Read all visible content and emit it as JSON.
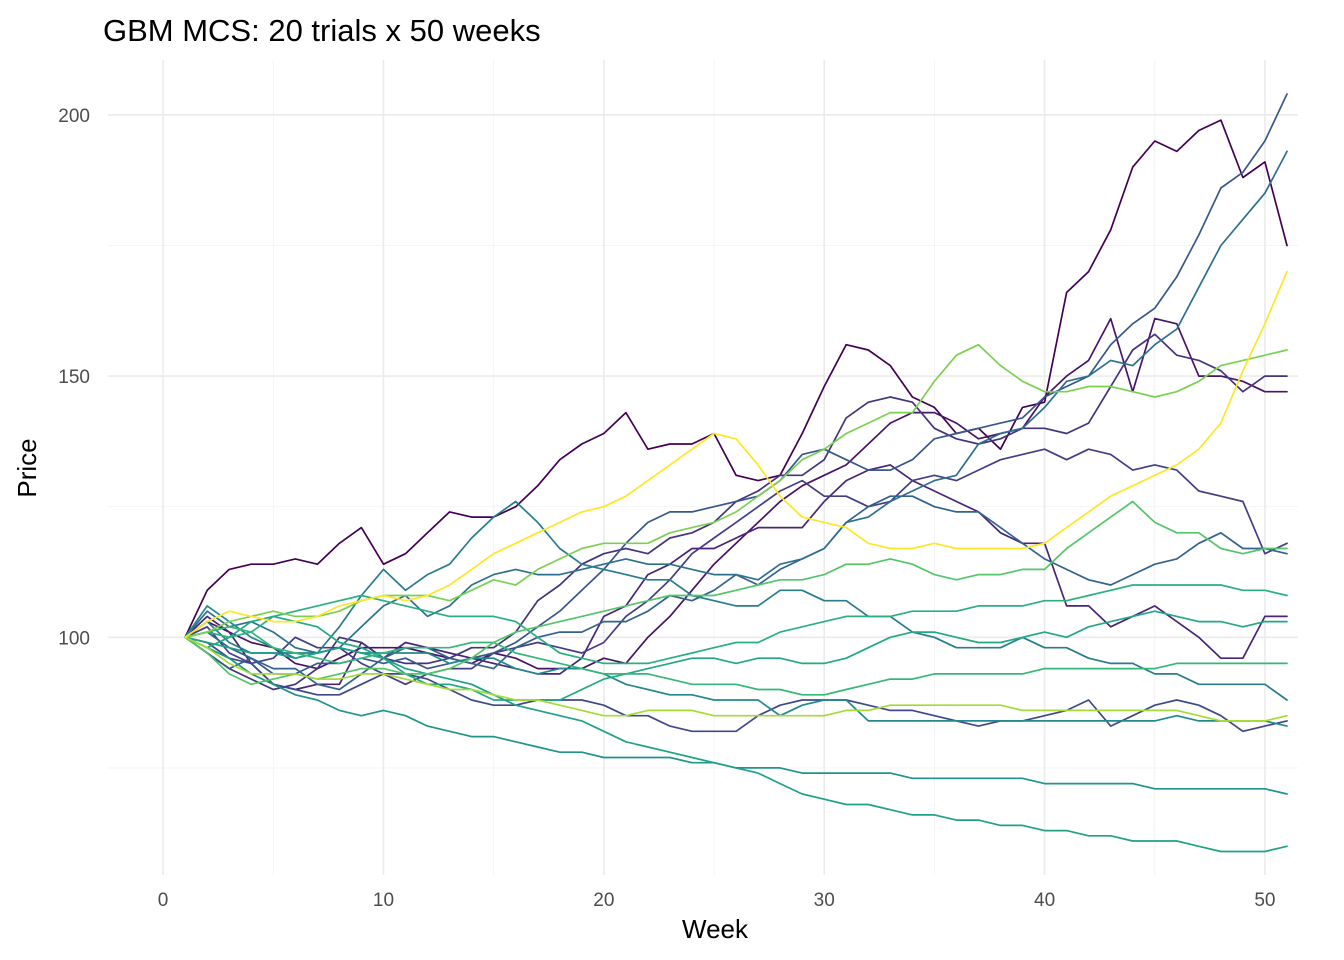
{
  "chart_data": {
    "type": "line",
    "title": "GBM MCS: 20 trials x 50 weeks",
    "xlabel": "Week",
    "ylabel": "Price",
    "xlim": [
      -2.5,
      51.5
    ],
    "ylim": [
      54.5,
      210.5
    ],
    "x_major_ticks": [
      0,
      10,
      20,
      30,
      40,
      50
    ],
    "x_minor_ticks": [
      5,
      15,
      25,
      35,
      45
    ],
    "y_major_ticks": [
      100,
      150,
      200
    ],
    "y_minor_ticks": [
      75,
      125,
      175
    ],
    "grid": true,
    "legend": "none",
    "series": [
      {
        "color": "#440154",
        "values": [
          100,
          109,
          113,
          114,
          114,
          115,
          114,
          118,
          121,
          114,
          116,
          120,
          124,
          123,
          123,
          125,
          129,
          134,
          137,
          139,
          143,
          136,
          137,
          137,
          139,
          131,
          130,
          131,
          139,
          148,
          156,
          155,
          152,
          146,
          144,
          139,
          140,
          136,
          144,
          145,
          166,
          170,
          178,
          190,
          195,
          193,
          197,
          199,
          188,
          191,
          175
        ]
      },
      {
        "color": "#481467",
        "values": [
          100,
          103,
          101,
          99,
          98,
          95,
          94,
          96,
          98,
          98,
          98,
          97,
          96,
          95,
          97,
          96,
          94,
          94,
          94,
          96,
          95,
          100,
          104,
          109,
          114,
          118,
          122,
          126,
          129,
          131,
          133,
          137,
          141,
          143,
          143,
          141,
          138,
          139,
          140,
          146,
          150,
          153,
          161,
          147,
          161,
          160,
          150,
          150,
          149,
          147,
          147
        ]
      },
      {
        "color": "#482576",
        "values": [
          100,
          104,
          101,
          95,
          91,
          90,
          91,
          91,
          99,
          96,
          99,
          98,
          97,
          96,
          95,
          94,
          93,
          93,
          96,
          104,
          106,
          112,
          114,
          117,
          117,
          119,
          121,
          121,
          121,
          126,
          130,
          132,
          133,
          130,
          128,
          126,
          124,
          120,
          118,
          118,
          106,
          106,
          102,
          104,
          106,
          103,
          100,
          96,
          96,
          104,
          104
        ]
      },
      {
        "color": "#46337E",
        "values": [
          100,
          97,
          94,
          92,
          90,
          91,
          94,
          100,
          99,
          96,
          95,
          95,
          96,
          98,
          98,
          101,
          107,
          110,
          114,
          116,
          117,
          116,
          119,
          120,
          122,
          126,
          128,
          131,
          131,
          134,
          142,
          145,
          146,
          145,
          140,
          138,
          137,
          138,
          140,
          140,
          139,
          141,
          148,
          155,
          158,
          154,
          153,
          151,
          147,
          150,
          150
        ]
      },
      {
        "color": "#433E85",
        "values": [
          100,
          102,
          97,
          95,
          96,
          100,
          98,
          98,
          95,
          93,
          91,
          93,
          94,
          94,
          97,
          98,
          99,
          98,
          97,
          99,
          104,
          107,
          111,
          116,
          119,
          122,
          125,
          128,
          130,
          127,
          127,
          125,
          126,
          130,
          131,
          130,
          132,
          134,
          135,
          136,
          134,
          136,
          135,
          132,
          133,
          132,
          128,
          127,
          126,
          116,
          118
        ]
      },
      {
        "color": "#3E4989",
        "values": [
          100,
          99,
          96,
          95,
          91,
          90,
          89,
          89,
          91,
          93,
          93,
          92,
          90,
          88,
          87,
          87,
          88,
          88,
          88,
          87,
          85,
          85,
          83,
          82,
          82,
          82,
          85,
          87,
          88,
          88,
          88,
          87,
          86,
          86,
          85,
          84,
          83,
          84,
          84,
          85,
          86,
          88,
          83,
          85,
          87,
          88,
          87,
          85,
          82,
          83,
          84
        ]
      },
      {
        "color": "#38588C",
        "values": [
          100,
          97,
          94,
          96,
          93,
          93,
          95,
          95,
          96,
          95,
          96,
          94,
          95,
          96,
          97,
          99,
          102,
          105,
          109,
          113,
          118,
          122,
          124,
          124,
          125,
          126,
          127,
          130,
          135,
          136,
          134,
          132,
          132,
          134,
          138,
          139,
          140,
          141,
          142,
          146,
          148,
          150,
          156,
          160,
          163,
          169,
          177,
          186,
          189,
          195,
          204
        ]
      },
      {
        "color": "#33638D",
        "values": [
          100,
          101,
          98,
          96,
          94,
          94,
          91,
          90,
          93,
          96,
          98,
          98,
          96,
          95,
          94,
          98,
          100,
          101,
          101,
          103,
          103,
          105,
          108,
          107,
          109,
          112,
          110,
          113,
          115,
          117,
          122,
          125,
          127,
          127,
          125,
          124,
          124,
          121,
          118,
          115,
          113,
          111,
          110,
          112,
          114,
          115,
          118,
          120,
          117,
          117,
          116
        ]
      },
      {
        "color": "#2D708E",
        "values": [
          100,
          105,
          102,
          103,
          101,
          98,
          97,
          98,
          102,
          106,
          108,
          104,
          106,
          110,
          112,
          113,
          112,
          112,
          113,
          114,
          115,
          114,
          114,
          113,
          112,
          112,
          111,
          114,
          115,
          117,
          122,
          123,
          126,
          128,
          130,
          131,
          137,
          139,
          140,
          144,
          149,
          150,
          153,
          152,
          156,
          159,
          167,
          175,
          180,
          185,
          193
        ]
      },
      {
        "color": "#287C8E",
        "values": [
          100,
          103,
          99,
          97,
          97,
          97,
          97,
          102,
          108,
          113,
          109,
          112,
          114,
          119,
          123,
          126,
          122,
          117,
          114,
          113,
          112,
          111,
          111,
          108,
          107,
          106,
          106,
          109,
          109,
          107,
          107,
          104,
          104,
          101,
          100,
          98,
          98,
          98,
          100,
          98,
          98,
          96,
          95,
          95,
          93,
          93,
          91,
          91,
          91,
          91,
          88
        ]
      },
      {
        "color": "#23898E",
        "values": [
          100,
          106,
          103,
          100,
          98,
          96,
          97,
          98,
          97,
          97,
          97,
          97,
          95,
          96,
          96,
          94,
          93,
          94,
          94,
          93,
          91,
          90,
          89,
          89,
          88,
          88,
          88,
          85,
          87,
          88,
          88,
          84,
          84,
          84,
          84,
          84,
          84,
          84,
          84,
          84,
          84,
          84,
          84,
          84,
          84,
          85,
          84,
          84,
          84,
          84,
          83
        ]
      },
      {
        "color": "#1F948C",
        "values": [
          100,
          98,
          96,
          93,
          91,
          89,
          88,
          86,
          85,
          86,
          85,
          83,
          82,
          81,
          81,
          80,
          79,
          78,
          78,
          77,
          77,
          77,
          77,
          76,
          76,
          75,
          75,
          75,
          74,
          74,
          74,
          74,
          74,
          73,
          73,
          73,
          73,
          73,
          73,
          72,
          72,
          72,
          72,
          72,
          71,
          71,
          71,
          71,
          71,
          71,
          70
        ]
      },
      {
        "color": "#1FA188",
        "values": [
          100,
          99,
          98,
          97,
          97,
          96,
          97,
          98,
          97,
          96,
          94,
          93,
          92,
          91,
          89,
          87,
          86,
          85,
          84,
          82,
          80,
          79,
          78,
          77,
          76,
          75,
          74,
          72,
          70,
          69,
          68,
          68,
          67,
          66,
          66,
          65,
          65,
          64,
          64,
          63,
          63,
          62,
          62,
          61,
          61,
          61,
          60,
          59,
          59,
          59,
          60
        ]
      },
      {
        "color": "#22A884",
        "values": [
          100,
          98,
          100,
          103,
          104,
          103,
          102,
          99,
          98,
          96,
          93,
          91,
          91,
          90,
          88,
          88,
          88,
          88,
          90,
          92,
          93,
          94,
          95,
          96,
          96,
          95,
          96,
          96,
          95,
          95,
          96,
          98,
          100,
          101,
          101,
          100,
          99,
          99,
          100,
          101,
          100,
          102,
          103,
          104,
          105,
          104,
          103,
          103,
          102,
          103,
          103
        ]
      },
      {
        "color": "#2AB07F",
        "values": [
          100,
          101,
          100,
          101,
          104,
          105,
          106,
          107,
          108,
          107,
          106,
          105,
          104,
          104,
          104,
          103,
          100,
          97,
          96,
          95,
          95,
          95,
          96,
          97,
          98,
          99,
          99,
          101,
          102,
          103,
          104,
          104,
          104,
          105,
          105,
          105,
          106,
          106,
          106,
          107,
          107,
          108,
          109,
          110,
          110,
          110,
          110,
          110,
          109,
          109,
          108
        ]
      },
      {
        "color": "#35B779",
        "values": [
          100,
          101,
          102,
          101,
          98,
          97,
          96,
          95,
          96,
          97,
          98,
          98,
          98,
          99,
          99,
          97,
          96,
          95,
          94,
          93,
          93,
          93,
          92,
          91,
          91,
          91,
          90,
          90,
          89,
          89,
          90,
          91,
          92,
          92,
          93,
          93,
          93,
          93,
          93,
          94,
          94,
          94,
          94,
          94,
          94,
          95,
          95,
          95,
          95,
          95,
          95
        ]
      },
      {
        "color": "#54C568",
        "values": [
          100,
          97,
          93,
          91,
          92,
          93,
          92,
          93,
          94,
          94,
          93,
          93,
          94,
          96,
          99,
          101,
          102,
          103,
          104,
          105,
          106,
          107,
          108,
          108,
          108,
          109,
          110,
          111,
          111,
          112,
          114,
          114,
          115,
          114,
          112,
          111,
          112,
          112,
          113,
          113,
          117,
          120,
          123,
          126,
          122,
          120,
          120,
          117,
          116,
          117,
          117
        ]
      },
      {
        "color": "#7AD151",
        "values": [
          100,
          101,
          103,
          104,
          105,
          104,
          104,
          105,
          107,
          108,
          108,
          108,
          107,
          109,
          111,
          110,
          113,
          115,
          117,
          118,
          118,
          118,
          120,
          121,
          122,
          124,
          127,
          130,
          134,
          136,
          139,
          141,
          143,
          143,
          149,
          154,
          156,
          152,
          149,
          147,
          147,
          148,
          148,
          147,
          146,
          147,
          149,
          152,
          153,
          154,
          155
        ]
      },
      {
        "color": "#A5DB36",
        "values": [
          100,
          98,
          95,
          93,
          93,
          93,
          92,
          92,
          93,
          93,
          92,
          91,
          90,
          90,
          89,
          88,
          88,
          87,
          86,
          85,
          85,
          86,
          86,
          86,
          85,
          85,
          85,
          85,
          85,
          85,
          86,
          86,
          87,
          87,
          87,
          87,
          87,
          87,
          86,
          86,
          86,
          86,
          86,
          86,
          86,
          86,
          85,
          84,
          84,
          84,
          85
        ]
      },
      {
        "color": "#FDE725",
        "values": [
          100,
          103,
          105,
          104,
          103,
          103,
          104,
          106,
          107,
          108,
          107,
          108,
          110,
          113,
          116,
          118,
          120,
          122,
          124,
          125,
          127,
          130,
          133,
          136,
          139,
          138,
          133,
          127,
          123,
          122,
          121,
          118,
          117,
          117,
          118,
          117,
          117,
          117,
          117,
          118,
          121,
          124,
          127,
          129,
          131,
          133,
          136,
          141,
          151,
          160,
          170
        ]
      }
    ]
  }
}
